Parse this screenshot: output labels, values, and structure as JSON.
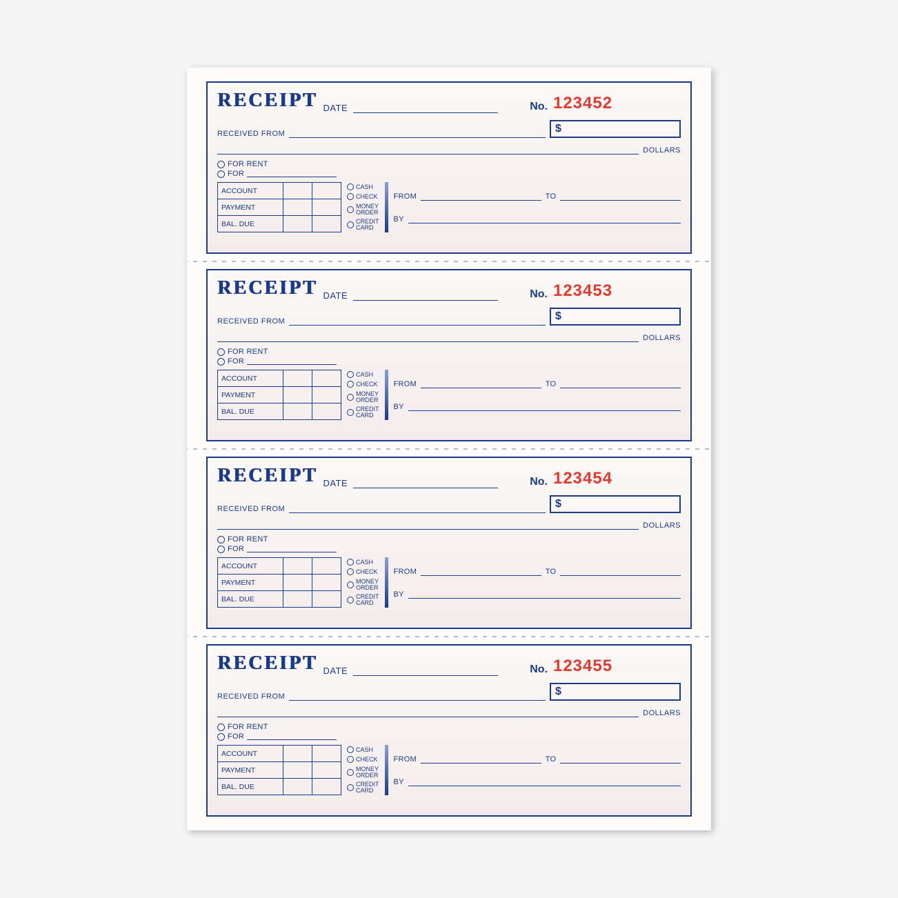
{
  "colors": {
    "ink": "#1a3a8a",
    "red": "#e23a2e",
    "paper_top": "#faf8f6",
    "paper_bot": "#f4ecec",
    "book_bg": "#fdfcfb",
    "page_bg": "#f5f5f5"
  },
  "common": {
    "title": "RECEIPT",
    "date_label": "DATE",
    "no_label": "No.",
    "received_from_label": "RECEIVED FROM",
    "dollar_sign": "$",
    "dollars_label": "DOLLARS",
    "for_rent_label": "FOR RENT",
    "for_label": "FOR",
    "table": {
      "account": "ACCOUNT",
      "payment": "PAYMENT",
      "bal_due": "BAL. DUE"
    },
    "methods": {
      "cash": "CASH",
      "check": "CHECK",
      "money_order": "MONEY\nORDER",
      "credit_card": "CREDIT\nCARD"
    },
    "from_label": "FROM",
    "to_label": "TO",
    "by_label": "BY"
  },
  "receipts": [
    {
      "number": "123452"
    },
    {
      "number": "123453"
    },
    {
      "number": "123454"
    },
    {
      "number": "123455"
    }
  ]
}
